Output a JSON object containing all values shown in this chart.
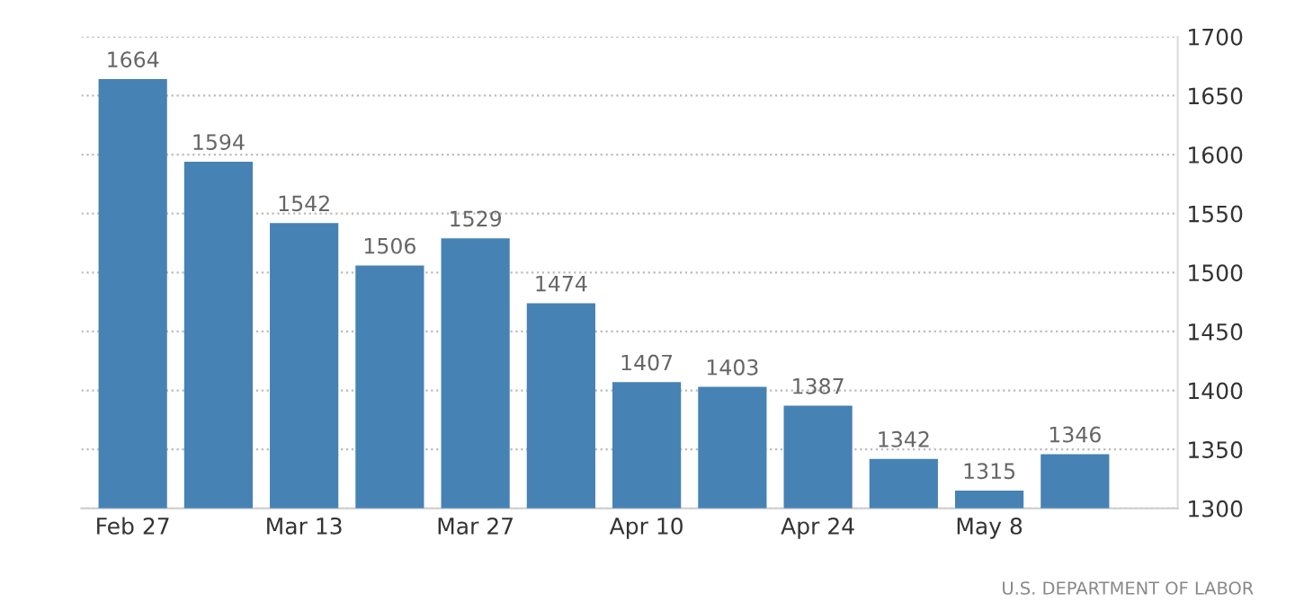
{
  "chart_data": {
    "type": "bar",
    "categories": [
      "Feb 27",
      null,
      "Mar 13",
      null,
      "Mar 27",
      null,
      "Apr 10",
      null,
      "Apr 24",
      null,
      "May 8",
      null
    ],
    "values": [
      1664,
      1594,
      1542,
      1506,
      1529,
      1474,
      1407,
      1403,
      1387,
      1342,
      1315,
      1346
    ],
    "color": "#4682b4",
    "ylim": [
      1300,
      1700
    ],
    "yticks": [
      1300,
      1350,
      1400,
      1450,
      1500,
      1550,
      1600,
      1650,
      1700
    ],
    "grid": "y",
    "data_labels": true,
    "annotations": [
      "U.S. DEPARTMENT OF LABOR"
    ]
  }
}
